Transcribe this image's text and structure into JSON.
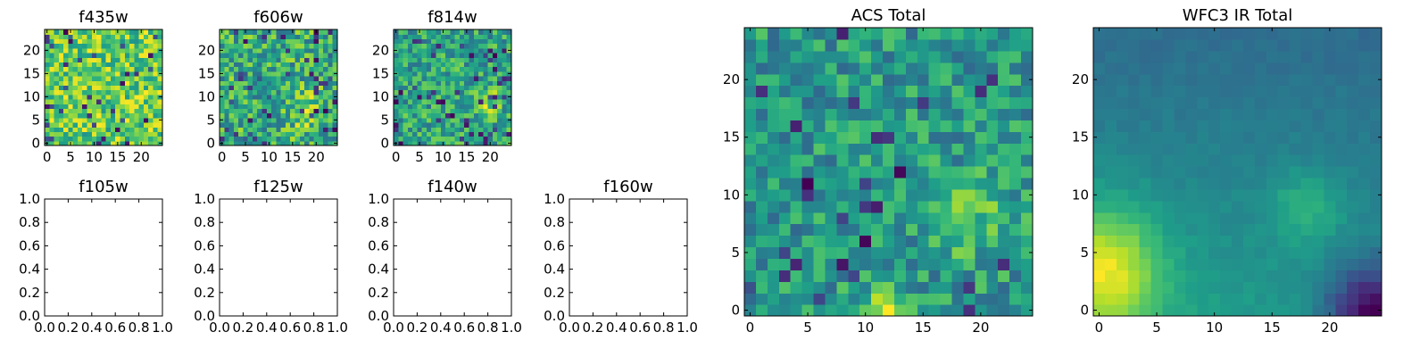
{
  "chart_data": [
    {
      "type": "heatmap",
      "title": "f435w",
      "colormap": "viridis",
      "xlim": [
        -0.5,
        24.5
      ],
      "ylim": [
        -0.5,
        24.5
      ],
      "xticks": [
        0,
        5,
        10,
        15,
        20
      ],
      "yticks": [
        0,
        5,
        10,
        15,
        20
      ],
      "grid": false,
      "shape": [
        25,
        25
      ],
      "values_note": "noisy per-pixel flux values normalized 0-1; mostly high (0.5-0.9) with scattered low pixels"
    },
    {
      "type": "heatmap",
      "title": "f606w",
      "colormap": "viridis",
      "xlim": [
        -0.5,
        24.5
      ],
      "ylim": [
        -0.5,
        24.5
      ],
      "xticks": [
        0,
        5,
        10,
        15,
        20
      ],
      "yticks": [
        0,
        5,
        10,
        15,
        20
      ],
      "grid": false,
      "shape": [
        25,
        25
      ],
      "values_note": "noisy flux values with a brighter region near x≈18, y≈7"
    },
    {
      "type": "heatmap",
      "title": "f814w",
      "colormap": "viridis",
      "xlim": [
        -0.5,
        24.5
      ],
      "ylim": [
        -0.5,
        24.5
      ],
      "xticks": [
        0,
        5,
        10,
        15,
        20
      ],
      "yticks": [
        0,
        5,
        10,
        15,
        20
      ],
      "grid": false,
      "shape": [
        25,
        25
      ],
      "values_note": "noisy flux values with a bright source near x≈19, y≈9"
    },
    {
      "type": "empty",
      "title": "f105w",
      "xlim": [
        0,
        1
      ],
      "ylim": [
        0,
        1
      ],
      "xticks": [
        "0.0",
        "0.2",
        "0.4",
        "0.6",
        "0.8",
        "1.0"
      ],
      "yticks": [
        "0.0",
        "0.2",
        "0.4",
        "0.6",
        "0.8",
        "1.0"
      ]
    },
    {
      "type": "empty",
      "title": "f125w",
      "xlim": [
        0,
        1
      ],
      "ylim": [
        0,
        1
      ],
      "xticks": [
        "0.0",
        "0.2",
        "0.4",
        "0.6",
        "0.8",
        "1.0"
      ],
      "yticks": [
        "0.0",
        "0.2",
        "0.4",
        "0.6",
        "0.8",
        "1.0"
      ]
    },
    {
      "type": "empty",
      "title": "f140w",
      "xlim": [
        0,
        1
      ],
      "ylim": [
        0,
        1
      ],
      "xticks": [
        "0.0",
        "0.2",
        "0.4",
        "0.6",
        "0.8",
        "1.0"
      ],
      "yticks": [
        "0.0",
        "0.2",
        "0.4",
        "0.6",
        "0.8",
        "1.0"
      ]
    },
    {
      "type": "empty",
      "title": "f160w",
      "xlim": [
        0,
        1
      ],
      "ylim": [
        0,
        1
      ],
      "xticks": [
        "0.0",
        "0.2",
        "0.4",
        "0.6",
        "0.8",
        "1.0"
      ],
      "yticks": [
        "0.0",
        "0.2",
        "0.4",
        "0.6",
        "0.8",
        "1.0"
      ]
    },
    {
      "type": "heatmap",
      "title": "ACS Total",
      "colormap": "viridis",
      "xlim": [
        -0.5,
        24.5
      ],
      "ylim": [
        -0.5,
        24.5
      ],
      "xticks": [
        0,
        5,
        10,
        15,
        20
      ],
      "yticks": [
        0,
        5,
        10,
        15,
        20
      ],
      "grid": false,
      "shape": [
        25,
        25
      ],
      "values_note": "noisy summed ACS flux; bright patch around x≈18-20, y≈6-10 and along bottom near x≈11-13"
    },
    {
      "type": "heatmap",
      "title": "WFC3 IR Total",
      "colormap": "viridis",
      "xlim": [
        -0.5,
        24.5
      ],
      "ylim": [
        -0.5,
        24.5
      ],
      "xticks": [
        0,
        5,
        10,
        15,
        20
      ],
      "yticks": [
        0,
        5,
        10,
        15,
        20
      ],
      "grid": false,
      "shape": [
        25,
        25
      ],
      "values_note": "smooth field; brightest at lower-left (x≈0-3, y≈0-8), secondary peak near x≈18, y≈9, darkest at lower-right corner (x≈22-24, y≈0-3)"
    }
  ],
  "colormap_stops": [
    "#440154",
    "#482878",
    "#3e4989",
    "#31688e",
    "#26828e",
    "#1f9e89",
    "#35b779",
    "#6ece58",
    "#b5de2b",
    "#fde725"
  ]
}
